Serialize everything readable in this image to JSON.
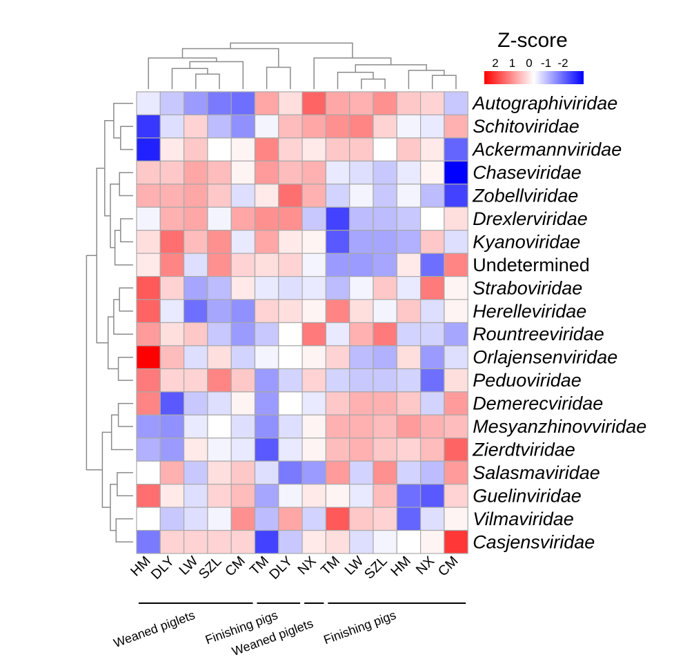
{
  "chart_data": {
    "type": "heatmap",
    "title": "",
    "xlabel": "",
    "ylabel": "",
    "legend": {
      "title": "Z-score",
      "ticks": [
        "2",
        "1",
        "0",
        "-1",
        "-2"
      ],
      "placement": "top-right",
      "colors": {
        "high": "#ff0000",
        "mid": "#ffffff",
        "low": "#0000ff"
      }
    },
    "columns": [
      "HM",
      "DLY",
      "LW",
      "SZL",
      "CM",
      "TM",
      "DLY",
      "NX",
      "TM",
      "LW",
      "SZL",
      "HM",
      "NX",
      "CM"
    ],
    "column_groups": [
      {
        "label": "Weaned piglets",
        "start": 0,
        "end": 4
      },
      {
        "label": "Finishing pigs",
        "start": 5,
        "end": 6
      },
      {
        "label": "Weaned piglets",
        "start": 7,
        "end": 7
      },
      {
        "label": "Finishing pigs",
        "start": 8,
        "end": 13
      }
    ],
    "rows": [
      {
        "name": "Autographiviridae",
        "italic": true
      },
      {
        "name": "Schitoviridae",
        "italic": true
      },
      {
        "name": "Ackermannviridae",
        "italic": true
      },
      {
        "name": "Chaseviridae",
        "italic": true
      },
      {
        "name": "Zobellviridae",
        "italic": true
      },
      {
        "name": "Drexlerviridae",
        "italic": true
      },
      {
        "name": "Kyanoviridae",
        "italic": true
      },
      {
        "name": "Undetermined",
        "italic": false
      },
      {
        "name": "Straboviridae",
        "italic": true
      },
      {
        "name": "Herelleviridae",
        "italic": true
      },
      {
        "name": "Rountreeviridae",
        "italic": true
      },
      {
        "name": "Orlajensenviridae",
        "italic": true
      },
      {
        "name": "Peduoviridae",
        "italic": true
      },
      {
        "name": "Demerecviridae",
        "italic": true
      },
      {
        "name": "Mesyanzhinovviridae",
        "italic": true
      },
      {
        "name": "Zierdtviridae",
        "italic": true
      },
      {
        "name": "Salasmaviridae",
        "italic": true
      },
      {
        "name": "Guelinviridae",
        "italic": true
      },
      {
        "name": "Vilmaviridae",
        "italic": true
      },
      {
        "name": "Casjensviridae",
        "italic": true
      }
    ],
    "values": [
      [
        -0.2,
        -0.5,
        -0.9,
        -1.2,
        -1.3,
        0.8,
        0.3,
        1.4,
        0.8,
        0.7,
        1.0,
        0.5,
        0.4,
        -0.5
      ],
      [
        -1.8,
        -0.3,
        0.4,
        -0.6,
        -1.0,
        -0.1,
        0.6,
        0.8,
        1.0,
        1.1,
        0.4,
        -0.1,
        -0.2,
        0.7
      ],
      [
        -2.0,
        0.2,
        0.5,
        0.0,
        0.1,
        1.1,
        0.4,
        0.2,
        0.5,
        0.5,
        0.0,
        0.5,
        0.2,
        -1.4
      ],
      [
        0.5,
        0.5,
        0.8,
        0.6,
        0.1,
        0.9,
        0.6,
        0.7,
        -0.2,
        -0.3,
        -0.5,
        -0.2,
        0.1,
        -2.3
      ],
      [
        0.7,
        0.7,
        0.8,
        0.5,
        -0.3,
        0.2,
        1.3,
        0.7,
        -0.4,
        -0.1,
        -0.5,
        -0.1,
        -0.6,
        -1.7
      ],
      [
        -0.1,
        0.7,
        0.8,
        -0.1,
        0.8,
        1.0,
        1.0,
        -0.5,
        -1.7,
        -0.6,
        -0.6,
        -0.5,
        0.0,
        0.3
      ],
      [
        0.3,
        1.3,
        0.6,
        1.0,
        -0.2,
        0.8,
        0.2,
        0.1,
        -1.5,
        -0.8,
        -0.8,
        -0.7,
        0.5,
        -0.3
      ],
      [
        0.2,
        1.1,
        -0.3,
        1.0,
        0.4,
        0.3,
        0.4,
        -0.1,
        -0.9,
        -0.9,
        -0.8,
        0.2,
        -1.3,
        1.1
      ],
      [
        1.5,
        0.4,
        -0.8,
        -0.6,
        0.2,
        -0.2,
        -0.3,
        -0.2,
        -0.6,
        -0.1,
        0.5,
        -0.2,
        1.2,
        0.1
      ],
      [
        1.4,
        -0.2,
        -1.3,
        -0.8,
        -1.0,
        0.4,
        0.3,
        0.1,
        1.1,
        0.3,
        -0.1,
        0.5,
        -0.3,
        0.1
      ],
      [
        0.9,
        0.3,
        0.5,
        -0.5,
        -0.9,
        -0.5,
        0.0,
        1.2,
        -0.2,
        0.7,
        1.2,
        -0.4,
        -0.4,
        -0.8
      ],
      [
        2.3,
        0.6,
        -0.3,
        0.3,
        -0.4,
        -0.1,
        0.0,
        0.1,
        0.4,
        -0.6,
        -0.7,
        0.3,
        -0.9,
        -0.3
      ],
      [
        1.2,
        0.4,
        0.4,
        1.1,
        0.5,
        -0.9,
        -0.4,
        0.4,
        -0.4,
        -0.5,
        -0.5,
        -0.4,
        -1.3,
        0.3
      ],
      [
        1.1,
        -1.5,
        -0.5,
        -0.3,
        0.1,
        -0.9,
        0.0,
        -0.2,
        0.5,
        0.7,
        0.7,
        0.5,
        -0.4,
        0.9
      ],
      [
        -0.9,
        -1.0,
        -0.2,
        0.0,
        -0.3,
        -1.0,
        -0.3,
        0.1,
        0.7,
        0.7,
        0.6,
        0.9,
        0.7,
        0.6
      ],
      [
        -0.7,
        -0.9,
        0.2,
        -0.1,
        -0.2,
        -1.5,
        -0.2,
        0.1,
        0.6,
        0.7,
        0.5,
        0.4,
        0.6,
        1.4
      ],
      [
        0.0,
        0.7,
        -0.5,
        0.3,
        0.5,
        -0.3,
        -1.2,
        -0.9,
        0.9,
        -0.4,
        1.0,
        -0.4,
        -0.6,
        0.9
      ],
      [
        1.3,
        0.2,
        -0.3,
        0.4,
        0.6,
        -0.8,
        -0.1,
        0.2,
        0.1,
        -0.2,
        0.6,
        -1.3,
        -1.5,
        0.4
      ],
      [
        0.0,
        -0.5,
        -0.3,
        -0.1,
        1.0,
        -0.6,
        0.8,
        -0.4,
        1.5,
        0.5,
        0.4,
        -1.4,
        -0.3,
        0.1
      ],
      [
        -1.2,
        0.4,
        0.4,
        0.4,
        0.4,
        -1.7,
        -0.5,
        0.2,
        0.3,
        -0.3,
        -0.1,
        0.0,
        0.1,
        1.8
      ]
    ]
  }
}
